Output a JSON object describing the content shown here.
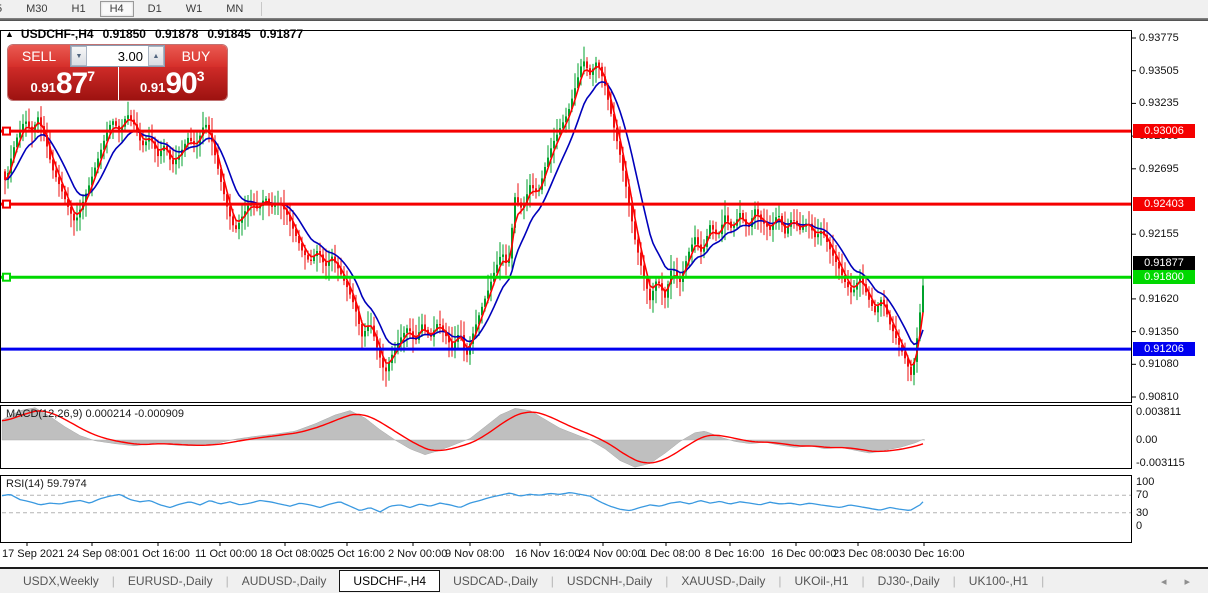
{
  "toolbar": {
    "timeframes": [
      "5",
      "M30",
      "H1",
      "H4",
      "D1",
      "W1",
      "MN"
    ],
    "active": "H4"
  },
  "chart": {
    "symbol": "USDCHF-,H4",
    "ohlc": {
      "open": "0.91850",
      "high": "0.91878",
      "low": "0.91845",
      "close": "0.91877"
    }
  },
  "trade_panel": {
    "sell_label": "SELL",
    "buy_label": "BUY",
    "volume": "3.00",
    "sell_price": {
      "prefix": "0.91",
      "big": "87",
      "sup": "7"
    },
    "buy_price": {
      "prefix": "0.91",
      "big": "90",
      "sup": "3"
    }
  },
  "indicators": {
    "macd_label": "MACD(12,26,9) 0.000214 -0.000909",
    "rsi_label": "RSI(14) 59.7974"
  },
  "price_axis": {
    "ticks": [
      {
        "label": "0.93775",
        "price": 0.93775
      },
      {
        "label": "0.93505",
        "price": 0.93505
      },
      {
        "label": "0.93235",
        "price": 0.93235
      },
      {
        "label": "0.92965",
        "price": 0.92965
      },
      {
        "label": "0.92695",
        "price": 0.92695
      },
      {
        "label": "0.92155",
        "price": 0.92155
      },
      {
        "label": "0.91620",
        "price": 0.9162
      },
      {
        "label": "0.91350",
        "price": 0.9135
      },
      {
        "label": "0.91080",
        "price": 0.9108
      },
      {
        "label": "0.90810",
        "price": 0.9081
      }
    ],
    "macd_ticks": [
      {
        "label": "0.003811",
        "value": 0.003811
      },
      {
        "label": "0.00",
        "value": 0
      },
      {
        "label": "-0.003115",
        "value": -0.003115
      }
    ],
    "rsi_ticks": [
      {
        "label": "100",
        "value": 100
      },
      {
        "label": "70",
        "value": 70
      },
      {
        "label": "30",
        "value": 30
      },
      {
        "label": "0",
        "value": 0
      }
    ]
  },
  "date_axis": {
    "labels": [
      [
        "17 Sep 2021",
        2
      ],
      [
        "24 Sep 08:00",
        67
      ],
      [
        "1 Oct 16:00",
        133
      ],
      [
        "11 Oct 00:00",
        195
      ],
      [
        "18 Oct 08:00",
        260
      ],
      [
        "25 Oct 16:00",
        322
      ],
      [
        "2 Nov 00:00",
        388
      ],
      [
        "9 Nov 08:00",
        445
      ],
      [
        "16 Nov 16:00",
        515
      ],
      [
        "24 Nov 00:00",
        578
      ],
      [
        "1 Dec 08:00",
        641
      ],
      [
        "8 Dec 16:00",
        705
      ],
      [
        "16 Dec 00:00",
        771
      ],
      [
        "23 Dec 08:00",
        833
      ],
      [
        "30 Dec 16:00",
        899
      ]
    ]
  },
  "tabs": {
    "items": [
      "USDX,Weekly",
      "EURUSD-,Daily",
      "AUDUSD-,Daily",
      "USDCHF-,H4",
      "USDCAD-,Daily",
      "USDCNH-,Daily",
      "XAUUSD-,Daily",
      "UKOil-,H1",
      "DJ30-,Daily",
      "UK100-,H1"
    ],
    "active": "USDCHF-,H4"
  },
  "colors": {
    "bull": "#00a22c",
    "bear": "#ee1111",
    "ma_fast": "#ff0000",
    "ma_slow": "#0000bb",
    "level_red": "#f50000",
    "level_green": "#00d800",
    "level_blue": "#0000f0",
    "current_label_bg": "#000000",
    "macd_fill": "#bfbfbf",
    "macd_signal": "#ff0000",
    "rsi_line": "#3a99e0",
    "panel_red": "#d62f2a"
  },
  "chart_data": [
    {
      "type": "candlestick",
      "title": "USDCHF-,H4",
      "ylim": [
        0.90769,
        0.93841
      ],
      "x_range": [
        0,
        925
      ],
      "ohlc_last": {
        "open": 0.9185,
        "high": 0.91878,
        "low": 0.91845,
        "close": 0.91877
      },
      "current_price": 0.91877,
      "levels": [
        {
          "label": "0.93006",
          "price": 0.93006,
          "color": "#f50000",
          "handle": true
        },
        {
          "label": "0.92403",
          "price": 0.92403,
          "color": "#f50000",
          "handle": true
        },
        {
          "label": "0.91800",
          "price": 0.918,
          "color": "#00d800",
          "handle": true
        },
        {
          "label": "0.91206",
          "price": 0.91206,
          "color": "#0000f0",
          "handle": false
        }
      ],
      "close_keypoints": [
        [
          0,
          0.9272
        ],
        [
          6,
          0.9258
        ],
        [
          12,
          0.9282
        ],
        [
          18,
          0.9298
        ],
        [
          25,
          0.931
        ],
        [
          32,
          0.93
        ],
        [
          38,
          0.9312
        ],
        [
          45,
          0.9295
        ],
        [
          52,
          0.927
        ],
        [
          60,
          0.9255
        ],
        [
          68,
          0.9238
        ],
        [
          75,
          0.9225
        ],
        [
          82,
          0.924
        ],
        [
          90,
          0.9258
        ],
        [
          98,
          0.9278
        ],
        [
          105,
          0.9295
        ],
        [
          112,
          0.931
        ],
        [
          120,
          0.93
        ],
        [
          127,
          0.9315
        ],
        [
          135,
          0.9305
        ],
        [
          142,
          0.9288
        ],
        [
          150,
          0.9296
        ],
        [
          158,
          0.928
        ],
        [
          165,
          0.929
        ],
        [
          172,
          0.9272
        ],
        [
          180,
          0.9282
        ],
        [
          188,
          0.9295
        ],
        [
          196,
          0.9288
        ],
        [
          205,
          0.9308
        ],
        [
          212,
          0.9292
        ],
        [
          220,
          0.9262
        ],
        [
          228,
          0.9235
        ],
        [
          235,
          0.9218
        ],
        [
          242,
          0.923
        ],
        [
          250,
          0.9242
        ],
        [
          258,
          0.9236
        ],
        [
          265,
          0.9246
        ],
        [
          272,
          0.9238
        ],
        [
          280,
          0.9242
        ],
        [
          288,
          0.923
        ],
        [
          295,
          0.9216
        ],
        [
          302,
          0.9202
        ],
        [
          310,
          0.9192
        ],
        [
          318,
          0.9203
        ],
        [
          325,
          0.9188
        ],
        [
          332,
          0.9197
        ],
        [
          340,
          0.9184
        ],
        [
          348,
          0.917
        ],
        [
          355,
          0.9155
        ],
        [
          362,
          0.9131
        ],
        [
          370,
          0.9143
        ],
        [
          378,
          0.9119
        ],
        [
          385,
          0.91
        ],
        [
          392,
          0.9116
        ],
        [
          400,
          0.9129
        ],
        [
          408,
          0.9139
        ],
        [
          415,
          0.9126
        ],
        [
          422,
          0.9141
        ],
        [
          430,
          0.9129
        ],
        [
          438,
          0.9143
        ],
        [
          445,
          0.9133
        ],
        [
          452,
          0.9121
        ],
        [
          460,
          0.9136
        ],
        [
          466,
          0.9113
        ],
        [
          472,
          0.9131
        ],
        [
          480,
          0.9151
        ],
        [
          488,
          0.9169
        ],
        [
          495,
          0.9186
        ],
        [
          502,
          0.9201
        ],
        [
          508,
          0.9187
        ],
        [
          515,
          0.9246
        ],
        [
          522,
          0.9236
        ],
        [
          530,
          0.9256
        ],
        [
          538,
          0.9249
        ],
        [
          545,
          0.9271
        ],
        [
          552,
          0.9289
        ],
        [
          560,
          0.9303
        ],
        [
          568,
          0.9316
        ],
        [
          575,
          0.9336
        ],
        [
          583,
          0.936
        ],
        [
          590,
          0.9347
        ],
        [
          597,
          0.9359
        ],
        [
          605,
          0.9338
        ],
        [
          612,
          0.9311
        ],
        [
          620,
          0.9281
        ],
        [
          628,
          0.9246
        ],
        [
          635,
          0.9211
        ],
        [
          642,
          0.9186
        ],
        [
          650,
          0.9161
        ],
        [
          657,
          0.9179
        ],
        [
          665,
          0.9163
        ],
        [
          672,
          0.9189
        ],
        [
          680,
          0.9176
        ],
        [
          688,
          0.9199
        ],
        [
          695,
          0.9213
        ],
        [
          702,
          0.9199
        ],
        [
          710,
          0.9223
        ],
        [
          718,
          0.9213
        ],
        [
          725,
          0.9231
        ],
        [
          732,
          0.9219
        ],
        [
          740,
          0.9233
        ],
        [
          748,
          0.9219
        ],
        [
          755,
          0.9236
        ],
        [
          762,
          0.9226
        ],
        [
          770,
          0.9219
        ],
        [
          778,
          0.9233
        ],
        [
          785,
          0.9216
        ],
        [
          792,
          0.9229
        ],
        [
          800,
          0.9219
        ],
        [
          808,
          0.9226
        ],
        [
          815,
          0.9213
        ],
        [
          822,
          0.9219
        ],
        [
          830,
          0.9203
        ],
        [
          838,
          0.9189
        ],
        [
          845,
          0.9176
        ],
        [
          852,
          0.9166
        ],
        [
          860,
          0.9181
        ],
        [
          868,
          0.9163
        ],
        [
          875,
          0.9151
        ],
        [
          882,
          0.9163
        ],
        [
          890,
          0.9141
        ],
        [
          898,
          0.9126
        ],
        [
          905,
          0.9113
        ],
        [
          912,
          0.9097
        ],
        [
          918,
          0.9136
        ],
        [
          925,
          0.9188
        ]
      ]
    },
    {
      "type": "area+line",
      "title": "MACD(12,26,9)",
      "last_values": [
        0.000214,
        -0.000909
      ],
      "ylim": [
        -0.0042,
        0.0052
      ],
      "axis_ticks": [
        0.003811,
        0,
        -0.003115
      ],
      "main_keypoints": [
        [
          0,
          0.0026
        ],
        [
          20,
          0.004
        ],
        [
          35,
          0.0044
        ],
        [
          50,
          0.0032
        ],
        [
          65,
          0.0018
        ],
        [
          80,
          0.0006
        ],
        [
          95,
          -0.0001
        ],
        [
          115,
          -0.0005
        ],
        [
          135,
          -0.0008
        ],
        [
          155,
          -0.0004
        ],
        [
          175,
          -0.0007
        ],
        [
          195,
          -0.0008
        ],
        [
          215,
          -0.0005
        ],
        [
          235,
          0.0001
        ],
        [
          255,
          0.0005
        ],
        [
          275,
          0.0008
        ],
        [
          295,
          0.0012
        ],
        [
          315,
          0.0022
        ],
        [
          335,
          0.0034
        ],
        [
          350,
          0.004
        ],
        [
          365,
          0.003
        ],
        [
          380,
          0.0014
        ],
        [
          395,
          0.0
        ],
        [
          410,
          -0.0012
        ],
        [
          425,
          -0.002
        ],
        [
          440,
          -0.0014
        ],
        [
          455,
          -0.0006
        ],
        [
          470,
          0.0002
        ],
        [
          485,
          0.0018
        ],
        [
          500,
          0.0034
        ],
        [
          515,
          0.0043
        ],
        [
          530,
          0.004
        ],
        [
          545,
          0.0028
        ],
        [
          560,
          0.0016
        ],
        [
          575,
          0.0008
        ],
        [
          590,
          0.0
        ],
        [
          605,
          -0.0012
        ],
        [
          620,
          -0.0028
        ],
        [
          635,
          -0.0037
        ],
        [
          650,
          -0.0032
        ],
        [
          665,
          -0.0018
        ],
        [
          680,
          -0.0002
        ],
        [
          695,
          0.001
        ],
        [
          705,
          0.0012
        ],
        [
          720,
          0.0004
        ],
        [
          735,
          -0.0002
        ],
        [
          750,
          -0.0005
        ],
        [
          765,
          -0.0003
        ],
        [
          780,
          -0.0007
        ],
        [
          795,
          -0.001
        ],
        [
          810,
          -0.0008
        ],
        [
          825,
          -0.0012
        ],
        [
          840,
          -0.001
        ],
        [
          855,
          -0.0014
        ],
        [
          870,
          -0.0018
        ],
        [
          885,
          -0.0014
        ],
        [
          900,
          -0.001
        ],
        [
          915,
          -0.0004
        ],
        [
          925,
          0.0002
        ]
      ]
    },
    {
      "type": "line",
      "title": "RSI(14)",
      "last_value": 59.7974,
      "ylim": [
        0,
        100
      ],
      "overbought": 70,
      "oversold": 30,
      "keypoints": [
        [
          0,
          68
        ],
        [
          10,
          72
        ],
        [
          20,
          60
        ],
        [
          30,
          55
        ],
        [
          40,
          48
        ],
        [
          50,
          52
        ],
        [
          60,
          50
        ],
        [
          70,
          55
        ],
        [
          80,
          58
        ],
        [
          90,
          52
        ],
        [
          100,
          62
        ],
        [
          110,
          68
        ],
        [
          120,
          72
        ],
        [
          130,
          60
        ],
        [
          140,
          55
        ],
        [
          150,
          58
        ],
        [
          160,
          48
        ],
        [
          170,
          42
        ],
        [
          180,
          50
        ],
        [
          190,
          55
        ],
        [
          200,
          48
        ],
        [
          210,
          58
        ],
        [
          220,
          50
        ],
        [
          230,
          55
        ],
        [
          240,
          48
        ],
        [
          250,
          52
        ],
        [
          260,
          58
        ],
        [
          270,
          55
        ],
        [
          280,
          50
        ],
        [
          290,
          45
        ],
        [
          300,
          52
        ],
        [
          310,
          48
        ],
        [
          320,
          42
        ],
        [
          330,
          50
        ],
        [
          340,
          55
        ],
        [
          350,
          45
        ],
        [
          360,
          35
        ],
        [
          370,
          42
        ],
        [
          380,
          32
        ],
        [
          390,
          45
        ],
        [
          400,
          48
        ],
        [
          410,
          42
        ],
        [
          420,
          50
        ],
        [
          430,
          45
        ],
        [
          440,
          52
        ],
        [
          450,
          48
        ],
        [
          460,
          42
        ],
        [
          470,
          52
        ],
        [
          480,
          58
        ],
        [
          490,
          65
        ],
        [
          500,
          70
        ],
        [
          510,
          75
        ],
        [
          520,
          68
        ],
        [
          530,
          72
        ],
        [
          540,
          70
        ],
        [
          550,
          74
        ],
        [
          560,
          72
        ],
        [
          570,
          76
        ],
        [
          580,
          72
        ],
        [
          590,
          68
        ],
        [
          600,
          55
        ],
        [
          610,
          45
        ],
        [
          620,
          38
        ],
        [
          630,
          35
        ],
        [
          640,
          42
        ],
        [
          650,
          48
        ],
        [
          660,
          45
        ],
        [
          670,
          52
        ],
        [
          680,
          55
        ],
        [
          690,
          50
        ],
        [
          700,
          58
        ],
        [
          710,
          52
        ],
        [
          720,
          56
        ],
        [
          730,
          50
        ],
        [
          740,
          55
        ],
        [
          750,
          52
        ],
        [
          760,
          48
        ],
        [
          770,
          54
        ],
        [
          780,
          50
        ],
        [
          790,
          52
        ],
        [
          800,
          48
        ],
        [
          810,
          52
        ],
        [
          820,
          48
        ],
        [
          830,
          45
        ],
        [
          840,
          42
        ],
        [
          850,
          48
        ],
        [
          860,
          44
        ],
        [
          870,
          40
        ],
        [
          880,
          36
        ],
        [
          890,
          42
        ],
        [
          900,
          38
        ],
        [
          910,
          35
        ],
        [
          920,
          48
        ],
        [
          925,
          59.8
        ]
      ]
    }
  ]
}
